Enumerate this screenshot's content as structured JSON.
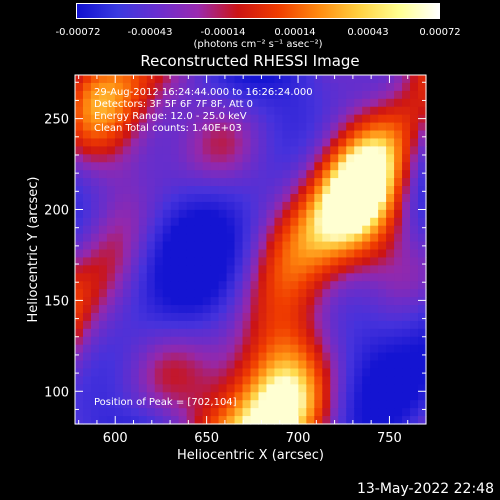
{
  "colorbar": {
    "tick_labels": [
      "-0.00072",
      "-0.00043",
      "-0.00014",
      "0.00014",
      "0.00043",
      "0.00072"
    ],
    "units": "(photons cm⁻² s⁻¹ asec⁻²)",
    "colors": [
      "#1010d0",
      "#3a3ae0",
      "#6a2fd0",
      "#9a2ab0",
      "#cc1414",
      "#f03c00",
      "#ff8a10",
      "#ffd040",
      "#ffff90",
      "#ffffff"
    ]
  },
  "chart_data": {
    "type": "heatmap",
    "title": "Reconstructed RHESSI Image",
    "xlabel": "Heliocentric X (arcsec)",
    "ylabel": "Heliocentric Y (arcsec)",
    "xlim": [
      578,
      770
    ],
    "ylim": [
      82,
      274
    ],
    "xticks": [
      600,
      650,
      700,
      750
    ],
    "yticks": [
      100,
      150,
      200,
      250
    ],
    "clim": [
      -0.00072,
      0.00072
    ],
    "peak_position": [
      702,
      104
    ],
    "annotations": {
      "time": "29-Aug-2012 16:24:44.000 to 16:26:24.000",
      "detectors": "Detectors: 3F 5F 6F 7F 8F, Att 0",
      "energy": "Energy Range: 12.0 - 25.0 keV",
      "clean": "Clean     Total counts: 1.40E+03",
      "peak": "Position of Peak = [702,104]"
    }
  },
  "footer": {
    "date": "13-May-2022 22:48"
  }
}
